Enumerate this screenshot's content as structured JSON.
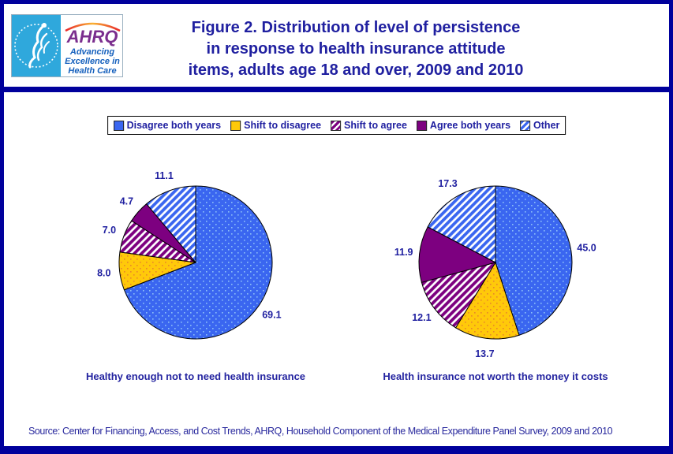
{
  "header": {
    "logo": {
      "ahrq": "AHRQ",
      "tagline_lines": [
        "Advancing",
        "Excellence in",
        "Health Care"
      ]
    },
    "title_lines": [
      "Figure 2. Distribution of level of persistence",
      "in response to health insurance attitude",
      "items, adults age 18 and over, 2009 and 2010"
    ]
  },
  "legend": {
    "items": [
      {
        "label": "Disagree both years",
        "style": "dots-blue"
      },
      {
        "label": "Shift to disagree",
        "style": "dots-yellow"
      },
      {
        "label": "Shift to agree",
        "style": "hatch-purple"
      },
      {
        "label": "Agree both years",
        "style": "solid-purple"
      },
      {
        "label": "Other",
        "style": "hatch-blue"
      }
    ]
  },
  "chart_data": {
    "type": "pie",
    "categories": [
      "Disagree both years",
      "Shift to disagree",
      "Shift to agree",
      "Agree both years",
      "Other"
    ],
    "styles": [
      "dots-blue",
      "dots-yellow",
      "hatch-purple",
      "solid-purple",
      "hatch-blue"
    ],
    "colors": {
      "blue": "#3A66F0",
      "yellow": "#FFC90A",
      "purple": "#7D0080",
      "navy": "#2020A0"
    },
    "start_angle": "12 o'clock",
    "direction": "clockwise",
    "value_labels": "percent, one decimal, outside slices",
    "pies": [
      {
        "caption": "Healthy enough not to need health insurance",
        "values": [
          69.1,
          8.0,
          7.0,
          4.7,
          11.1
        ]
      },
      {
        "caption": "Health insurance not worth the money it costs",
        "values": [
          45.0,
          13.7,
          12.1,
          11.9,
          17.3
        ]
      }
    ]
  },
  "footer": {
    "source": "Source: Center for Financing, Access, and Cost Trends, AHRQ, Household Component of the Medical Expenditure Panel Survey,  2009 and 2010"
  }
}
